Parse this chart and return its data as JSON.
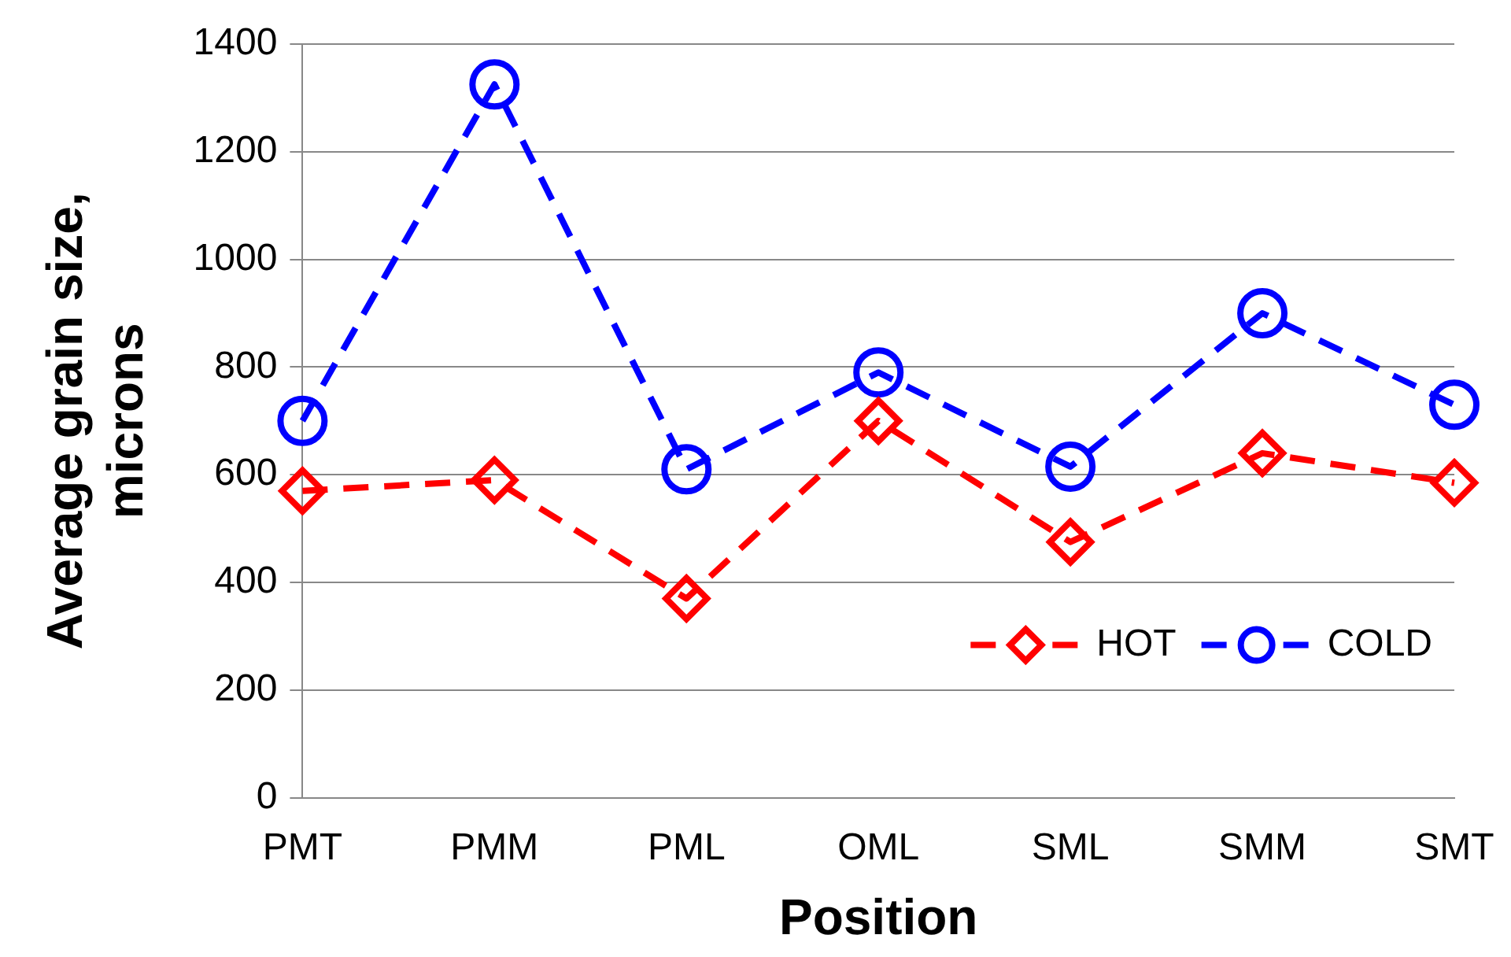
{
  "chart_data": {
    "type": "line",
    "xlabel": "Position",
    "ylabel": "Average grain size, microns",
    "categories": [
      "PMT",
      "PMM",
      "PML",
      "OML",
      "SML",
      "SMM",
      "SMT"
    ],
    "series": [
      {
        "name": "HOT",
        "color": "#ff0000",
        "marker": "diamond",
        "line_style": "dashed",
        "values": [
          570,
          590,
          370,
          700,
          475,
          640,
          585
        ]
      },
      {
        "name": "COLD",
        "color": "#0000ff",
        "marker": "circle",
        "line_style": "dashed",
        "values": [
          700,
          1325,
          610,
          790,
          615,
          900,
          730
        ]
      }
    ],
    "ylim": [
      0,
      1400
    ],
    "yticks": [
      0,
      200,
      400,
      600,
      800,
      1000,
      1200,
      1400
    ],
    "grid": "y",
    "legend": "bottom right"
  }
}
